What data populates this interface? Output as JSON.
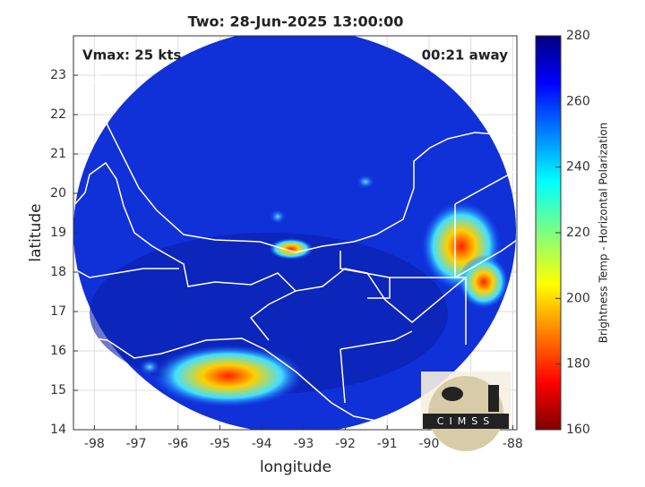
{
  "title": "Two: 28-Jun-2025 13:00:00",
  "annotations": {
    "vmax": "Vmax: 25 kts",
    "time": "00:21 away"
  },
  "x_axis": {
    "label": "longitude",
    "lim": [
      -98.5,
      -87.9
    ],
    "ticks": [
      -98,
      -97,
      -96,
      -95,
      -94,
      -93,
      -92,
      -91,
      -90,
      -89,
      -88
    ]
  },
  "y_axis": {
    "label": "latitude",
    "lim": [
      14,
      24
    ],
    "ticks": [
      14,
      15,
      16,
      17,
      18,
      19,
      20,
      21,
      22,
      23
    ]
  },
  "colorbar": {
    "label": "Brightness Temp - Horizontal Polarization",
    "lim": [
      160,
      280
    ],
    "ticks": [
      160,
      180,
      200,
      220,
      240,
      260,
      280
    ]
  },
  "logo": {
    "text": "CIMSS"
  }
}
